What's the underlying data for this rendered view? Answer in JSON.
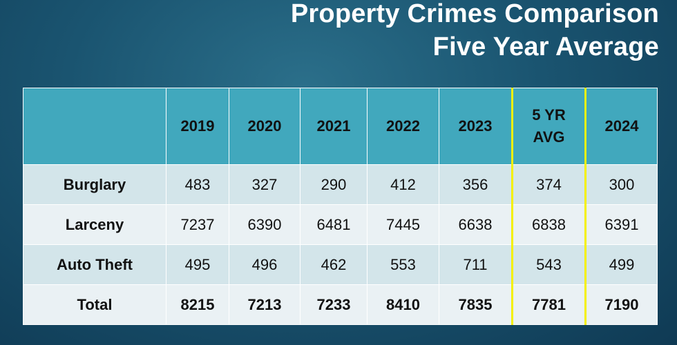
{
  "title": {
    "line1": "Property Crimes Comparison",
    "line2": "Five Year Average"
  },
  "table": {
    "headers": [
      "",
      "2019",
      "2020",
      "2021",
      "2022",
      "2023",
      "5 YR AVG",
      "2024"
    ],
    "header_avg_line1": "5 YR",
    "header_avg_line2": "AVG",
    "rows": [
      {
        "label": "Burglary",
        "values": [
          "483",
          "327",
          "290",
          "412",
          "356",
          "374",
          "300"
        ]
      },
      {
        "label": "Larceny",
        "values": [
          "7237",
          "6390",
          "6481",
          "7445",
          "6638",
          "6838",
          "6391"
        ]
      },
      {
        "label": "Auto Theft",
        "values": [
          "495",
          "496",
          "462",
          "553",
          "711",
          "543",
          "499"
        ]
      },
      {
        "label": "Total",
        "values": [
          "8215",
          "7213",
          "7233",
          "8410",
          "7835",
          "7781",
          "7190"
        ]
      }
    ]
  },
  "colors": {
    "header_bg": "#41a8bd",
    "row_dark": "#d3e5ea",
    "row_light": "#eaf1f4",
    "highlight": "#f4f000"
  }
}
